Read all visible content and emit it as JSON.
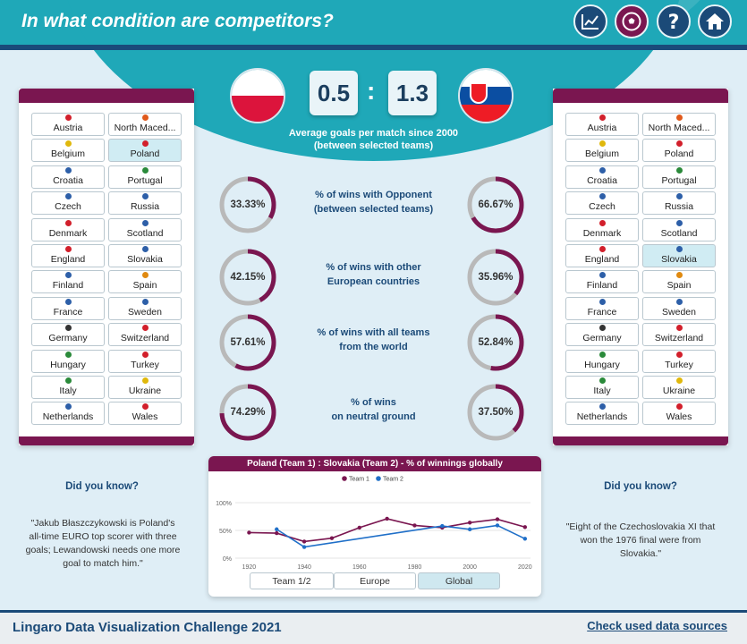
{
  "header": {
    "title": "In what condition are competitors?",
    "nav": [
      "chart-icon",
      "football-icon",
      "help-icon",
      "home-icon"
    ]
  },
  "match": {
    "team1": "Poland",
    "team2": "Slovakia",
    "score1": "0.5",
    "separator": ":",
    "score2": "1.3",
    "caption": "Average goals per match since 2000 (between selected teams)"
  },
  "teams": [
    {
      "name": "Austria",
      "color": "#d21f2b"
    },
    {
      "name": "North Maced...",
      "color": "#e05a1c"
    },
    {
      "name": "Belgium",
      "color": "#e0b80c"
    },
    {
      "name": "Poland",
      "color": "#d21f2b"
    },
    {
      "name": "Croatia",
      "color": "#2d5fa8"
    },
    {
      "name": "Portugal",
      "color": "#2a8a3a"
    },
    {
      "name": "Czech",
      "color": "#2d5fa8"
    },
    {
      "name": "Russia",
      "color": "#2d5fa8"
    },
    {
      "name": "Denmark",
      "color": "#d21f2b"
    },
    {
      "name": "Scotland",
      "color": "#2d5fa8"
    },
    {
      "name": "England",
      "color": "#d21f2b"
    },
    {
      "name": "Slovakia",
      "color": "#2d5fa8"
    },
    {
      "name": "Finland",
      "color": "#2d5fa8"
    },
    {
      "name": "Spain",
      "color": "#e08a10"
    },
    {
      "name": "France",
      "color": "#2d5fa8"
    },
    {
      "name": "Sweden",
      "color": "#2d5fa8"
    },
    {
      "name": "Germany",
      "color": "#333333"
    },
    {
      "name": "Switzerland",
      "color": "#d21f2b"
    },
    {
      "name": "Hungary",
      "color": "#2a8a3a"
    },
    {
      "name": "Turkey",
      "color": "#d21f2b"
    },
    {
      "name": "Italy",
      "color": "#2a8a3a"
    },
    {
      "name": "Ukraine",
      "color": "#e0b80c"
    },
    {
      "name": "Netherlands",
      "color": "#2d5fa8"
    },
    {
      "name": "Wales",
      "color": "#d21f2b"
    }
  ],
  "left_selected": "Poland",
  "right_selected": "Slovakia",
  "stats": [
    {
      "label1": "% of wins with Opponent",
      "label2": "(between selected teams)",
      "left": "33.33%",
      "left_value": 33.33,
      "right": "66.67%",
      "right_value": 66.67
    },
    {
      "label1": "% of wins with other",
      "label2": "European countries",
      "left": "42.15%",
      "left_value": 42.15,
      "right": "35.96%",
      "right_value": 35.96
    },
    {
      "label1": "% of wins with all teams",
      "label2": "from the world",
      "left": "57.61%",
      "left_value": 57.61,
      "right": "52.84%",
      "right_value": 52.84
    },
    {
      "label1": "% of wins",
      "label2": "on neutral ground",
      "left": "74.29%",
      "left_value": 74.29,
      "right": "37.50%",
      "right_value": 37.5
    }
  ],
  "did_you_know": {
    "title": "Did you know?",
    "left_text": "\"Jakub Błaszczykowski is Poland's all-time EURO top scorer with three goals; Lewandowski needs one more goal to match him.\"",
    "right_text": "\"Eight of the Czechoslovakia XI that won the 1976 final were from Slovakia.\""
  },
  "chart_data": {
    "type": "line",
    "title": "Poland (Team 1) : Slovakia (Team 2)  - % of winnings globally",
    "x_ticks": [
      "1920",
      "1940",
      "1960",
      "1980",
      "2000",
      "2020"
    ],
    "y_ticks": [
      "100%",
      "50%",
      "0%"
    ],
    "xlim": [
      1915,
      2022
    ],
    "ylim": [
      0,
      100
    ],
    "series": [
      {
        "name": "Team 1",
        "color": "#7a1650",
        "x": [
          1920,
          1930,
          1940,
          1950,
          1960,
          1970,
          1980,
          1990,
          2000,
          2010,
          2020
        ],
        "y": [
          46,
          45,
          30,
          36,
          55,
          71,
          59,
          55,
          64,
          70,
          56
        ]
      },
      {
        "name": "Team 2",
        "color": "#1f6fc8",
        "x": [
          1930,
          1940,
          1990,
          2000,
          2010,
          2020
        ],
        "y": [
          52,
          20,
          58,
          52,
          59,
          35
        ]
      }
    ],
    "legend": "top"
  },
  "chart_buttons": [
    "Team 1/2",
    "Europe",
    "Global"
  ],
  "chart_selected": "Global",
  "footer": {
    "title": "Lingaro Data Visualization Challenge 2021",
    "link": "Check used data sources"
  }
}
